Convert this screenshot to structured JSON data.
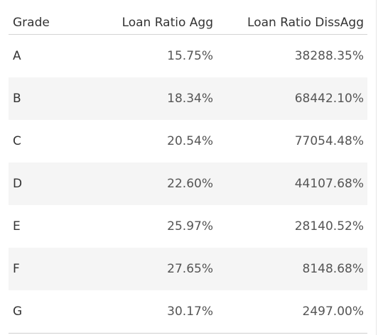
{
  "table": {
    "headers": {
      "grade": "Grade",
      "agg": "Loan Ratio Agg",
      "dissagg": "Loan Ratio DissAgg"
    },
    "rows": [
      {
        "grade": "A",
        "agg": "15.75%",
        "dissagg": "38288.35%"
      },
      {
        "grade": "B",
        "agg": "18.34%",
        "dissagg": "68442.10%"
      },
      {
        "grade": "C",
        "agg": "20.54%",
        "dissagg": "77054.48%"
      },
      {
        "grade": "D",
        "agg": "22.60%",
        "dissagg": "44107.68%"
      },
      {
        "grade": "E",
        "agg": "25.97%",
        "dissagg": "28140.52%"
      },
      {
        "grade": "F",
        "agg": "27.65%",
        "dissagg": "8148.68%"
      },
      {
        "grade": "G",
        "agg": "30.17%",
        "dissagg": "2497.00%"
      }
    ]
  }
}
